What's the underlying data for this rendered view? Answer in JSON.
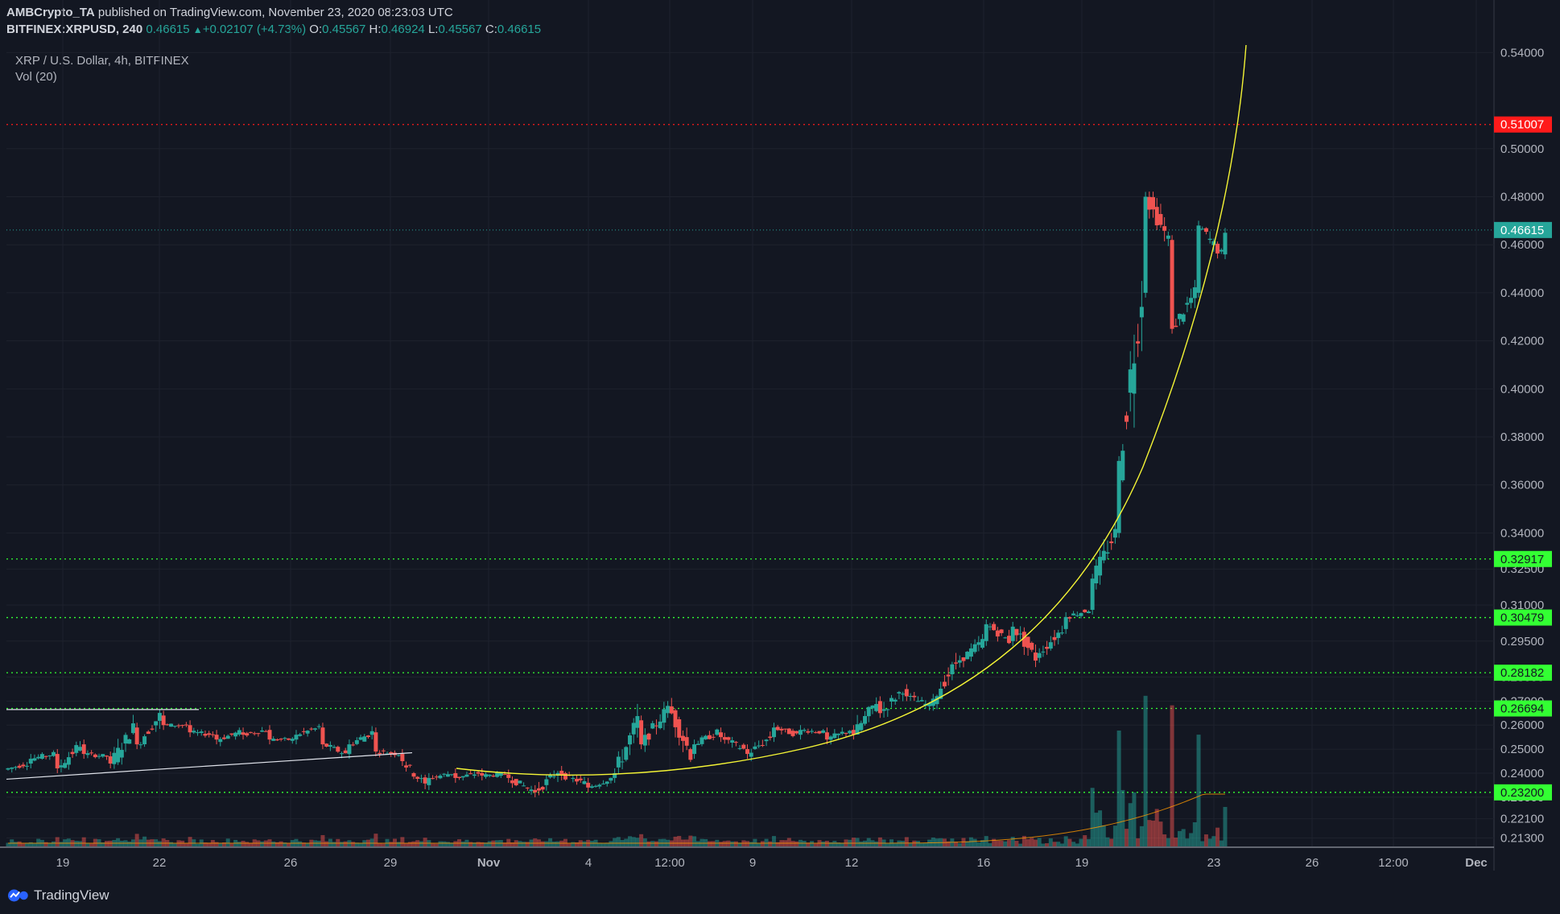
{
  "header": {
    "publisher": "AMBCrypto_TA",
    "published_text": " published on TradingView.com, November 23, 2020 08:23:03 UTC",
    "symbol": "BITFINEX:XRPUSD, 240",
    "last": "0.46615",
    "change": "+0.02107 (+4.73%)",
    "o_label": "O:",
    "o_value": "0.45567",
    "h_label": "H:",
    "h_value": "0.46924",
    "l_label": "L:",
    "l_value": "0.45567",
    "c_label": "C:",
    "c_value": "0.46615"
  },
  "legend": {
    "title": "XRP / U.S. Dollar, 4h, BITFINEX",
    "volume": "Vol (20)"
  },
  "footer": {
    "brand": "TradingView"
  },
  "chart_data": {
    "type": "candlestick",
    "title": "XRP / U.S. Dollar, 4h, BITFINEX",
    "ylim": [
      0.2095,
      0.5465
    ],
    "y_ticks": [
      "0.54000",
      "0.50000",
      "0.48000",
      "0.46000",
      "0.44000",
      "0.42000",
      "0.40000",
      "0.38000",
      "0.36000",
      "0.34000",
      "0.32500",
      "0.31000",
      "0.29500",
      "0.28000",
      "0.27000",
      "0.26000",
      "0.25000",
      "0.24000",
      "0.23000",
      "0.22100",
      "0.21300"
    ],
    "x_ticks": [
      "19",
      "22",
      "26",
      "29",
      "Nov",
      "4",
      "12:00",
      "9",
      "12",
      "16",
      "19",
      "23",
      "26",
      "12:00",
      "Dec"
    ],
    "price_levels": [
      {
        "label": "0.51007",
        "value": 0.51007,
        "color": "#ff1a1a"
      },
      {
        "label": "0.32917",
        "value": 0.32917,
        "color": "#33ff33"
      },
      {
        "label": "0.30479",
        "value": 0.30479,
        "color": "#33ff33"
      },
      {
        "label": "0.28182",
        "value": 0.28182,
        "color": "#33ff33"
      },
      {
        "label": "0.26694",
        "value": 0.26694,
        "color": "#33ff33"
      },
      {
        "label": "0.23200",
        "value": 0.232,
        "color": "#33ff33"
      }
    ],
    "last_price": {
      "label": "0.46615",
      "value": 0.46615,
      "color": "#26a69a"
    },
    "trendlines": {
      "upper": [
        [
          0.2665,
          0.2665
        ]
      ],
      "lower": [
        [
          0.2375,
          0.2485
        ]
      ]
    },
    "series": [
      {
        "name": "price",
        "anchors": [
          [
            0.242,
            0.2415
          ],
          [
            0.244,
            0.246
          ],
          [
            0.248,
            0.242
          ],
          [
            0.252,
            0.248
          ],
          [
            0.247,
            0.244
          ],
          [
            0.259,
            0.252
          ],
          [
            0.264,
            0.26
          ],
          [
            0.26,
            0.257
          ],
          [
            0.256,
            0.254
          ],
          [
            0.257,
            0.256
          ],
          [
            0.258,
            0.254
          ],
          [
            0.254,
            0.256
          ],
          [
            0.259,
            0.252
          ],
          [
            0.248,
            0.252
          ],
          [
            0.257,
            0.249
          ],
          [
            0.248,
            0.245
          ],
          [
            0.235,
            0.238
          ],
          [
            0.24,
            0.238
          ],
          [
            0.24,
            0.239
          ],
          [
            0.2395,
            0.238
          ],
          [
            0.233,
            0.232
          ],
          [
            0.241,
            0.239
          ],
          [
            0.236,
            0.234
          ],
          [
            0.238,
            0.24
          ],
          [
            0.262,
            0.252
          ],
          [
            0.265,
            0.268
          ],
          [
            0.248,
            0.252
          ],
          [
            0.257,
            0.255
          ],
          [
            0.25,
            0.248
          ],
          [
            0.255,
            0.259
          ],
          [
            0.256,
            0.258
          ],
          [
            0.257,
            0.254
          ],
          [
            0.258,
            0.256
          ],
          [
            0.27,
            0.265
          ],
          [
            0.275,
            0.272
          ],
          [
            0.268,
            0.271
          ],
          [
            0.286,
            0.287
          ],
          [
            0.295,
            0.302
          ],
          [
            0.295,
            0.301
          ],
          [
            0.288,
            0.29
          ],
          [
            0.3,
            0.305
          ],
          [
            0.308,
            0.321
          ],
          [
            0.34,
            0.37
          ],
          [
            0.44,
            0.48
          ],
          [
            0.462,
            0.425
          ],
          [
            0.44,
            0.468
          ],
          [
            0.456,
            0.465
          ]
        ]
      }
    ]
  }
}
